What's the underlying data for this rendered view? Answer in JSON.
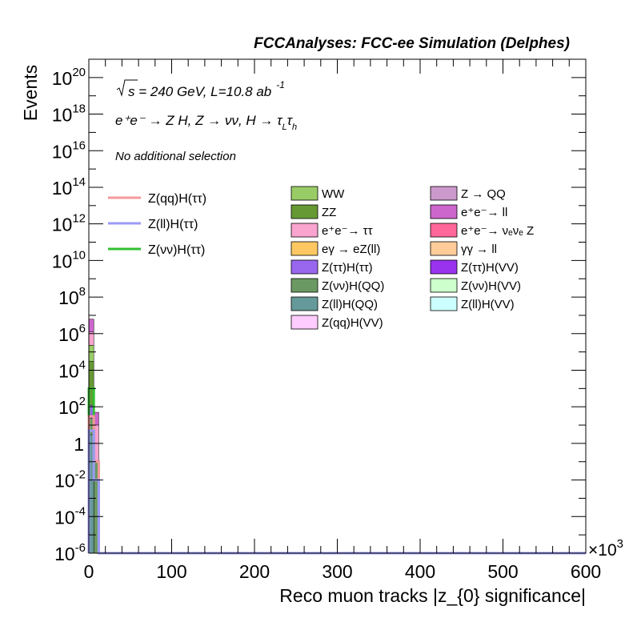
{
  "chart_data": {
    "type": "bar",
    "stacked": true,
    "title": "FCCAnalyses: FCC-ee Simulation (Delphes)",
    "xlabel": "Reco muon tracks |z_{0} significance|",
    "ylabel": "Events",
    "x_multiplier": "×10",
    "x_multiplier_exp": "3",
    "xlim": [
      0,
      600000
    ],
    "ylim": [
      1e-06,
      1e+21
    ],
    "yscale": "log",
    "grid": false,
    "legend_position": "upper",
    "x_ticks": [
      "0",
      "100",
      "200",
      "300",
      "400",
      "500",
      "600"
    ],
    "y_ticks": [
      {
        "base": "10",
        "exp": "20",
        "value": 1e+20
      },
      {
        "base": "10",
        "exp": "18",
        "value": 1e+18
      },
      {
        "base": "10",
        "exp": "16",
        "value": 1e+16
      },
      {
        "base": "10",
        "exp": "14",
        "value": 100000000000000.0
      },
      {
        "base": "10",
        "exp": "12",
        "value": 1000000000000.0
      },
      {
        "base": "10",
        "exp": "10",
        "value": 10000000000.0
      },
      {
        "base": "10",
        "exp": "8",
        "value": 100000000.0
      },
      {
        "base": "10",
        "exp": "6",
        "value": 1000000.0
      },
      {
        "base": "10",
        "exp": "4",
        "value": 10000.0
      },
      {
        "base": "10",
        "exp": "2",
        "value": 100.0
      },
      {
        "base": "1",
        "exp": "",
        "value": 1
      },
      {
        "base": "10",
        "exp": "-2",
        "value": 0.01
      },
      {
        "base": "10",
        "exp": "-4",
        "value": 0.0001
      },
      {
        "base": "10",
        "exp": "-6",
        "value": 1e-06
      }
    ],
    "annotations": {
      "sqrt_s": "s = 240 GeV, L=10.8 ab",
      "lumi_exp": "-1",
      "process": "e⁺e⁻ → Z H, Z → νν, H → τ",
      "process_sub1": "L",
      "process_tau2": "τ",
      "process_sub2": "h",
      "selection": "No additional selection"
    },
    "legend_signals": [
      {
        "name": "Z(qq)H(ττ)",
        "color": "#f6989d"
      },
      {
        "name": "Z(ll)H(ττ)",
        "color": "#9b9bf5"
      },
      {
        "name": "Z(νν)H(ττ)",
        "color": "#32c032"
      }
    ],
    "legend_backgrounds": [
      {
        "name": "WW",
        "color": "#99cc66"
      },
      {
        "name": "ZZ",
        "color": "#669933"
      },
      {
        "name": "e⁺e⁻→ ττ",
        "color": "#f9a3cf"
      },
      {
        "name": "eγ → eZ(ll)",
        "color": "#fdc862"
      },
      {
        "name": "Z(ττ)H(ττ)",
        "color": "#9966ee"
      },
      {
        "name": "Z(νν)H(QQ)",
        "color": "#6b9963"
      },
      {
        "name": "Z(ll)H(QQ)",
        "color": "#669999"
      },
      {
        "name": "Z(qq)H(VV)",
        "color": "#ffccff"
      },
      {
        "name": "Z → QQ",
        "color": "#cc99cc"
      },
      {
        "name": "e⁺e⁻→ ll",
        "color": "#cc66cc"
      },
      {
        "name": "e⁺e⁻→ νₑνₑ Z",
        "color": "#ff6699"
      },
      {
        "name": "γγ → ll",
        "color": "#ffcc99"
      },
      {
        "name": "Z(ττ)H(VV)",
        "color": "#9933ee"
      },
      {
        "name": "Z(νν)H(VV)",
        "color": "#ccffcc"
      },
      {
        "name": "Z(ll)H(VV)",
        "color": "#ccffff"
      }
    ],
    "stack_bins": [
      {
        "x_low": 0,
        "x_high": 6000,
        "layers": [
          {
            "name": "Z(ll)H(QQ)",
            "value": 3.0,
            "color": "#669999"
          },
          {
            "name": "Z(νν)H(QQ)",
            "value": 20.0,
            "color": "#6b9963"
          },
          {
            "name": "Z(ττ)H(ττ)",
            "value": 100.0,
            "color": "#9966ee"
          },
          {
            "name": "ZZ",
            "value": 30000.0,
            "color": "#669933"
          },
          {
            "name": "WW",
            "value": 200000.0,
            "color": "#99cc66"
          },
          {
            "name": "e⁺e⁻→ ττ",
            "value": 1000000.0,
            "color": "#f9a3cf"
          },
          {
            "name": "e⁺e⁻→ ll",
            "value": 5000000.0,
            "color": "#cc66cc"
          }
        ]
      },
      {
        "x_low": 6000,
        "x_high": 12000,
        "layers": [
          {
            "name": "Z(νν)H(QQ)",
            "value": 0.1,
            "color": "#6b9963"
          },
          {
            "name": "e⁺e⁻→ ττ",
            "value": 10.0,
            "color": "#f9a3cf"
          },
          {
            "name": "e⁺e⁻→ ll",
            "value": 40.0,
            "color": "#cc66cc"
          }
        ]
      }
    ],
    "signal_lines": [
      {
        "name": "Z(νν)H(ττ)",
        "color": "#32c032",
        "x": [
          0,
          6000,
          12000
        ],
        "y": [
          1000.0,
          0.1,
          1e-06
        ]
      },
      {
        "name": "Z(qq)H(ττ)",
        "color": "#f6989d",
        "x": [
          0,
          6000,
          12000
        ],
        "y": [
          30.0,
          0.1,
          1e-06
        ]
      },
      {
        "name": "Z(ll)H(ττ)",
        "color": "#9b9bf5",
        "x": [
          0,
          6000,
          12000
        ],
        "y": [
          5.0,
          0.01,
          1e-06
        ]
      }
    ]
  }
}
